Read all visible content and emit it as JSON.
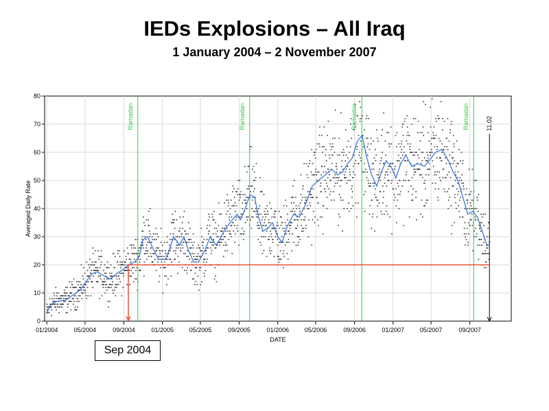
{
  "header": {
    "title": "IEDs Explosions – All Iraq",
    "subtitle": "1 January 2004 – 2 November 2007"
  },
  "callout": {
    "label": "Sep 2004"
  },
  "chart_data": {
    "type": "scatter",
    "title": "IEDs Explosions – All Iraq",
    "subtitle": "1 January 2004 – 2 November 2007",
    "xlabel": "DATE",
    "ylabel": "Averaged Daily Rate",
    "xlim": [
      "2003-12-25",
      "2008-01-10"
    ],
    "ylim": [
      0,
      80
    ],
    "grid": true,
    "x_ticks": [
      {
        "date": "2004-01-01",
        "label": "01/2004"
      },
      {
        "date": "2004-05-01",
        "label": "05/2004"
      },
      {
        "date": "2004-09-01",
        "label": "09/2004"
      },
      {
        "date": "2005-01-01",
        "label": "01/2005"
      },
      {
        "date": "2005-05-01",
        "label": "05/2005"
      },
      {
        "date": "2005-09-01",
        "label": "09/2005"
      },
      {
        "date": "2006-01-01",
        "label": "01/2006"
      },
      {
        "date": "2006-05-01",
        "label": "05/2006"
      },
      {
        "date": "2006-09-01",
        "label": "09/2006"
      },
      {
        "date": "2007-01-01",
        "label": "01/2007"
      },
      {
        "date": "2007-05-01",
        "label": "05/2007"
      },
      {
        "date": "2007-09-01",
        "label": "09/2007"
      }
    ],
    "y_ticks": [
      0,
      10,
      20,
      30,
      40,
      50,
      60,
      70,
      80
    ],
    "annotations": [
      {
        "label": "Ramadan",
        "date": "2004-10-15",
        "color": "#2ecc40"
      },
      {
        "label": "Ramadan",
        "date": "2005-10-04",
        "color": "#2ecc40"
      },
      {
        "label": "Ramadan",
        "date": "2006-09-24",
        "color": "#2ecc40"
      },
      {
        "label": "Ramadan",
        "date": "2007-09-13",
        "color": "#2ecc40"
      },
      {
        "label": "11.02",
        "date": "2007-11-02",
        "color": "#000000"
      }
    ],
    "reference_line": {
      "y": 20,
      "from": "2004-09-15",
      "to": "2007-11-02",
      "color": "#e8553a"
    },
    "moving_average": {
      "color": "#3a78d8",
      "points": [
        [
          "2004-01-01",
          3
        ],
        [
          "2004-01-15",
          6
        ],
        [
          "2004-02-01",
          7
        ],
        [
          "2004-03-01",
          7.5
        ],
        [
          "2004-03-20",
          9
        ],
        [
          "2004-04-15",
          11
        ],
        [
          "2004-05-10",
          15
        ],
        [
          "2004-05-25",
          17
        ],
        [
          "2004-06-10",
          17.5
        ],
        [
          "2004-07-01",
          16
        ],
        [
          "2004-07-20",
          15
        ],
        [
          "2004-08-10",
          17
        ],
        [
          "2004-08-25",
          18
        ],
        [
          "2004-09-15",
          20
        ],
        [
          "2004-10-05",
          21
        ],
        [
          "2004-10-20",
          23
        ],
        [
          "2004-11-01",
          29
        ],
        [
          "2004-11-15",
          30
        ],
        [
          "2004-12-01",
          26
        ],
        [
          "2004-12-20",
          22
        ],
        [
          "2005-01-10",
          22
        ],
        [
          "2005-01-25",
          26
        ],
        [
          "2005-02-05",
          30
        ],
        [
          "2005-02-25",
          27
        ],
        [
          "2005-03-10",
          30
        ],
        [
          "2005-03-25",
          25
        ],
        [
          "2005-04-10",
          21
        ],
        [
          "2005-04-25",
          21
        ],
        [
          "2005-05-15",
          25
        ],
        [
          "2005-06-01",
          30
        ],
        [
          "2005-06-20",
          27
        ],
        [
          "2005-07-01",
          29
        ],
        [
          "2005-07-20",
          33
        ],
        [
          "2005-08-10",
          36
        ],
        [
          "2005-08-25",
          38
        ],
        [
          "2005-09-05",
          36
        ],
        [
          "2005-09-20",
          40
        ],
        [
          "2005-10-05",
          45
        ],
        [
          "2005-10-20",
          44
        ],
        [
          "2005-11-01",
          37
        ],
        [
          "2005-11-15",
          32
        ],
        [
          "2005-12-01",
          33
        ],
        [
          "2005-12-15",
          35
        ],
        [
          "2006-01-01",
          30
        ],
        [
          "2006-01-15",
          28
        ],
        [
          "2006-02-01",
          34
        ],
        [
          "2006-02-20",
          38
        ],
        [
          "2006-03-10",
          37
        ],
        [
          "2006-04-01",
          42
        ],
        [
          "2006-04-20",
          48
        ],
        [
          "2006-05-10",
          50
        ],
        [
          "2006-06-01",
          52
        ],
        [
          "2006-06-20",
          54
        ],
        [
          "2006-07-10",
          52
        ],
        [
          "2006-07-25",
          53
        ],
        [
          "2006-08-10",
          56
        ],
        [
          "2006-08-25",
          58
        ],
        [
          "2006-09-10",
          64
        ],
        [
          "2006-09-25",
          66
        ],
        [
          "2006-10-10",
          58
        ],
        [
          "2006-10-25",
          52
        ],
        [
          "2006-11-10",
          48
        ],
        [
          "2006-11-25",
          53
        ],
        [
          "2006-12-10",
          57
        ],
        [
          "2006-12-25",
          55
        ],
        [
          "2007-01-10",
          51
        ],
        [
          "2007-01-25",
          56
        ],
        [
          "2007-02-10",
          59
        ],
        [
          "2007-03-01",
          55
        ],
        [
          "2007-03-20",
          56
        ],
        [
          "2007-04-10",
          55
        ],
        [
          "2007-04-25",
          57
        ],
        [
          "2007-05-15",
          60
        ],
        [
          "2007-06-05",
          61
        ],
        [
          "2007-06-25",
          57
        ],
        [
          "2007-07-10",
          53
        ],
        [
          "2007-07-25",
          50
        ],
        [
          "2007-08-10",
          44
        ],
        [
          "2007-08-25",
          38
        ],
        [
          "2007-09-10",
          39
        ],
        [
          "2007-09-25",
          37
        ],
        [
          "2007-10-10",
          32
        ],
        [
          "2007-10-25",
          27
        ]
      ]
    }
  }
}
